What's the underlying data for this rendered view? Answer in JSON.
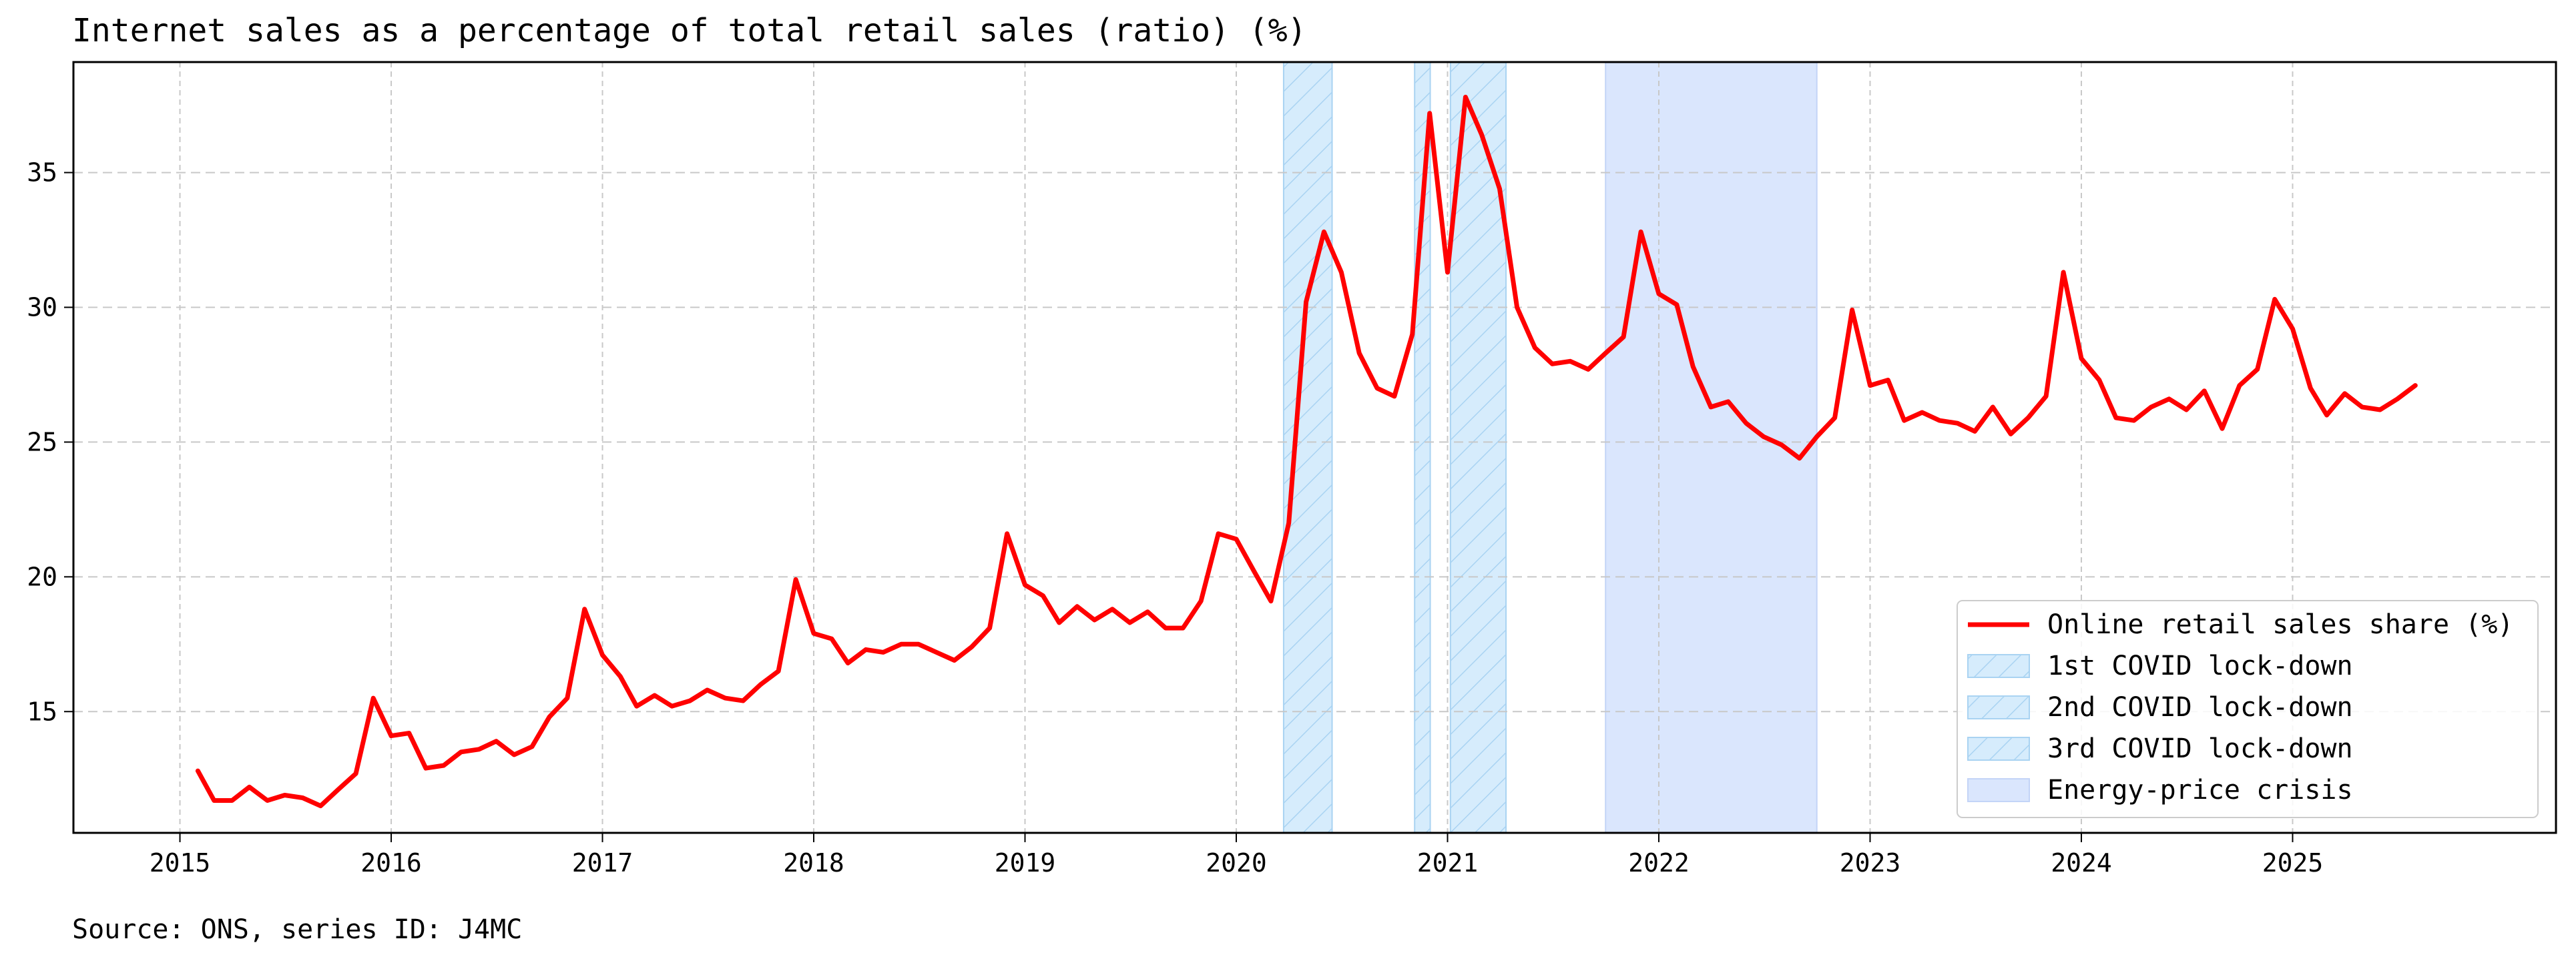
{
  "chart_data": {
    "type": "line",
    "title": "Internet sales as a percentage of total retail sales (ratio) (%)",
    "source": "Source: ONS, series ID: J4MC",
    "xlabel": "",
    "ylabel": "",
    "x_ticks": [
      "2015",
      "2016",
      "2017",
      "2018",
      "2019",
      "2020",
      "2021",
      "2022",
      "2023",
      "2024",
      "2025"
    ],
    "y_ticks": [
      15,
      20,
      25,
      30,
      35
    ],
    "xlim": [
      "2014-07-01",
      "2026-04-01"
    ],
    "ylim": [
      10.5,
      39.1
    ],
    "grid": true,
    "legend_position": "bottom-right",
    "series": [
      {
        "name": "Online retail sales share (%)",
        "color": "#ff0000",
        "start": "2015-02",
        "frequency": "monthly",
        "values": [
          12.8,
          11.7,
          11.7,
          12.2,
          11.7,
          11.9,
          11.8,
          11.5,
          12.1,
          12.7,
          15.5,
          14.1,
          14.2,
          12.9,
          13.0,
          13.5,
          13.6,
          13.9,
          13.4,
          13.7,
          14.8,
          15.5,
          18.8,
          17.1,
          16.3,
          15.2,
          15.6,
          15.2,
          15.4,
          15.8,
          15.5,
          15.4,
          16.0,
          16.5,
          19.9,
          17.9,
          17.7,
          16.8,
          17.3,
          17.2,
          17.5,
          17.5,
          17.2,
          16.9,
          17.4,
          18.1,
          21.6,
          19.7,
          19.3,
          18.3,
          18.9,
          18.4,
          18.8,
          18.3,
          18.7,
          18.1,
          18.1,
          19.1,
          21.6,
          21.4,
          20.2,
          19.1,
          22.0,
          30.2,
          32.8,
          31.3,
          28.3,
          27.0,
          26.7,
          29.0,
          37.2,
          31.3,
          37.8,
          36.4,
          34.4,
          30.0,
          28.5,
          27.9,
          28.0,
          27.7,
          28.3,
          28.9,
          32.8,
          30.5,
          30.1,
          27.8,
          26.3,
          26.5,
          25.7,
          25.2,
          24.9,
          24.4,
          25.2,
          25.9,
          29.9,
          27.1,
          27.3,
          25.8,
          26.1,
          25.8,
          25.7,
          25.4,
          26.3,
          25.3,
          25.9,
          26.7,
          31.3,
          28.1,
          27.3,
          25.9,
          25.8,
          26.3,
          26.6,
          26.2,
          26.9,
          25.5,
          27.1,
          27.7,
          30.3,
          29.2,
          27.0,
          26.0,
          26.8,
          26.3,
          26.2,
          26.6,
          27.1
        ]
      }
    ],
    "shaded_periods": [
      {
        "name": "1st COVID lock-down",
        "start": "2020-03-23",
        "end": "2020-06-15",
        "color": "#d6ecfc",
        "hatch": true
      },
      {
        "name": "2nd COVID lock-down",
        "start": "2020-11-05",
        "end": "2020-12-02",
        "color": "#d6ecfc",
        "hatch": true
      },
      {
        "name": "3rd COVID lock-down",
        "start": "2021-01-06",
        "end": "2021-04-12",
        "color": "#d6ecfc",
        "hatch": true
      },
      {
        "name": "Energy-price crisis",
        "start": "2021-10-01",
        "end": "2022-10-01",
        "color": "#dae6fd",
        "hatch": false
      }
    ]
  }
}
